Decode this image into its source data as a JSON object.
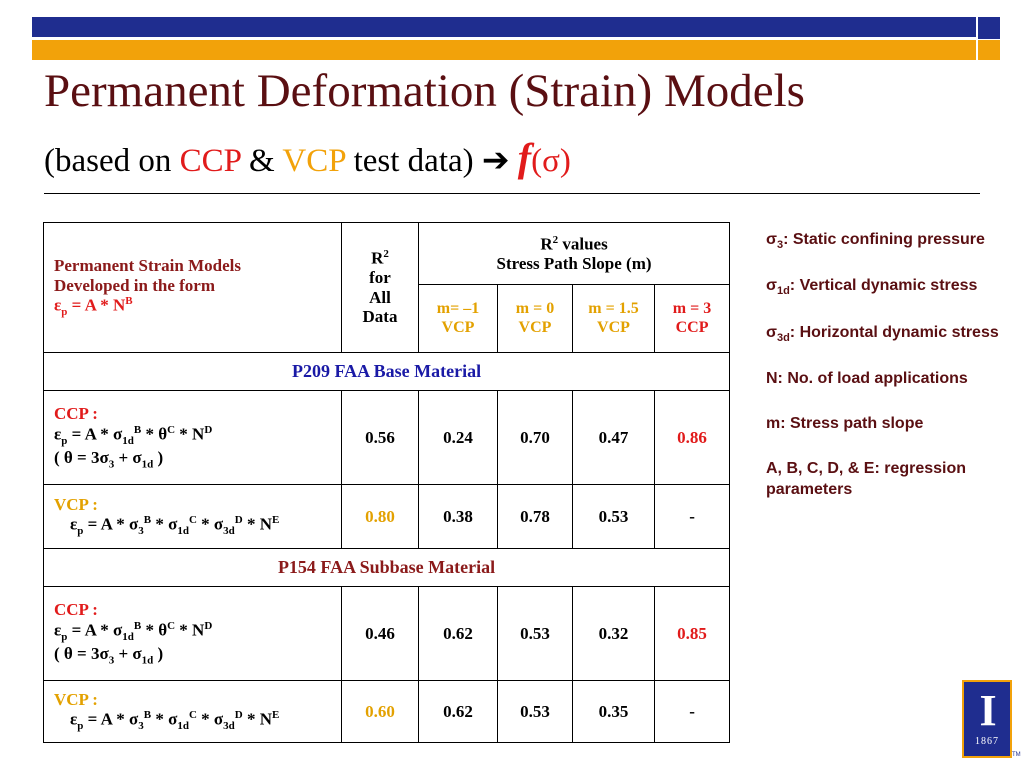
{
  "colors": {
    "title": "#5a0f12",
    "ccp": "#e11b1b",
    "vcp": "#f2a20a",
    "material": "#1a1aa6",
    "bar_blue": "#1f2d8f",
    "bar_orange": "#f2a20a"
  },
  "title": "Permanent Deformation (Strain) Models",
  "subtitle": {
    "prefix": "(based on ",
    "ccp": "CCP",
    "amp": " & ",
    "vcp": "VCP",
    "suffix": " test data) ",
    "arrow": "➔",
    "f": "f",
    "sigma": "(σ)"
  },
  "table": {
    "header": {
      "models_line1": "Permanent Strain Models",
      "models_line2": "Developed in the form",
      "models_eq_base": "ε",
      "models_eq_sub": "p",
      "models_eq_rest": " = A * N",
      "models_eq_sup": "B",
      "r2_all_line1_base": "R",
      "r2_all_line1_sup": "2",
      "r2_all_line2": "for",
      "r2_all_line3": "All",
      "r2_all_line4": "Data",
      "r2_values_base": "R",
      "r2_values_sup": "2",
      "r2_values_rest": " values",
      "stress_path": "Stress Path Slope (m)",
      "m_cols": [
        {
          "m": "m= –1",
          "type": "VCP"
        },
        {
          "m": "m = 0",
          "type": "VCP"
        },
        {
          "m": "m = 1.5",
          "type": "VCP"
        },
        {
          "m": "m = 3",
          "type": "CCP"
        }
      ]
    },
    "sections": [
      {
        "material": "P209 FAA Base Material",
        "rows": [
          {
            "label": "CCP :",
            "r2_all": "0.56",
            "values": [
              "0.24",
              "0.70",
              "0.47",
              "0.86"
            ]
          },
          {
            "label": "VCP :",
            "r2_all": "0.80",
            "values": [
              "0.38",
              "0.78",
              "0.53",
              "-"
            ]
          }
        ]
      },
      {
        "material": "P154 FAA Subbase Material",
        "rows": [
          {
            "label": "CCP :",
            "r2_all": "0.46",
            "values": [
              "0.62",
              "0.53",
              "0.32",
              "0.85"
            ]
          },
          {
            "label": "VCP :",
            "r2_all": "0.60",
            "values": [
              "0.62",
              "0.53",
              "0.35",
              "-"
            ]
          }
        ]
      }
    ],
    "eq": {
      "eps": "ε",
      "p": "p",
      "eq_a": " = A * ",
      "sigma": "σ",
      "sub_1d": "1d",
      "sub_3": "3",
      "sub_3d": "3d",
      "sup_b": "B",
      "sup_c": "C",
      "sup_d": "D",
      "sup_e": "E",
      "star": " * ",
      "theta": "θ",
      "n": "N",
      "theta_open": " ( θ = 3σ",
      "theta_plus": " + σ",
      "theta_close": " )"
    }
  },
  "notes": [
    {
      "sym": "σ",
      "sub": "3",
      "text": ": Static confining pressure"
    },
    {
      "sym": "σ",
      "sub": "1d",
      "text": ": Vertical dynamic stress"
    },
    {
      "sym": "σ",
      "sub": "3d",
      "text": ": Horizontal dynamic stress"
    },
    {
      "sym": "",
      "sub": "",
      "text": "N: No. of load applications"
    },
    {
      "sym": "",
      "sub": "",
      "text": "m: Stress path slope"
    },
    {
      "sym": "",
      "sub": "",
      "text": "A, B, C, D, & E: regression parameters"
    }
  ],
  "logo": {
    "year": "1867",
    "tm": "TM"
  }
}
